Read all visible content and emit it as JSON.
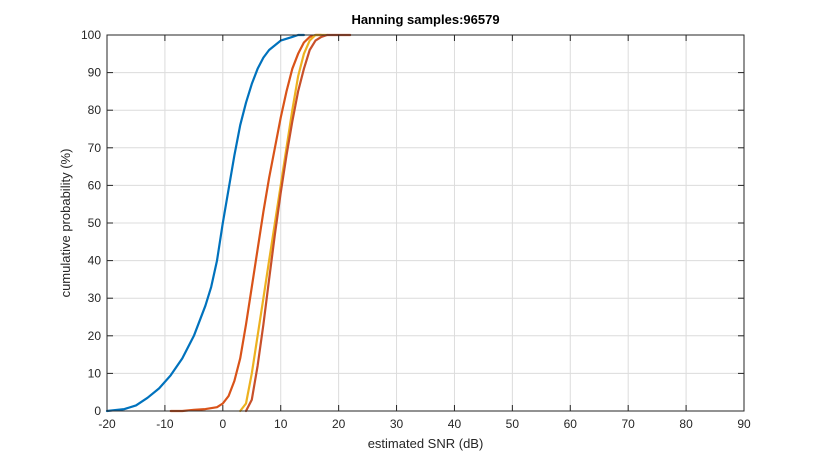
{
  "chart_data": {
    "type": "line",
    "title": "Hanning samples:96579",
    "xlabel": "estimated SNR (dB)",
    "ylabel": "cumulative probability (%)",
    "xlim": [
      -20,
      90
    ],
    "ylim": [
      0,
      100
    ],
    "xticks": [
      "-20",
      "-10",
      "0",
      "10",
      "20",
      "30",
      "40",
      "50",
      "60",
      "70",
      "80",
      "90"
    ],
    "yticks": [
      "0",
      "10",
      "20",
      "30",
      "40",
      "50",
      "60",
      "70",
      "80",
      "90",
      "100"
    ],
    "grid": true,
    "series": [
      {
        "color": "#0072BD",
        "x": [
          -20,
          -17,
          -15,
          -13,
          -11,
          -9,
          -7,
          -5,
          -3,
          -2,
          -1,
          0,
          1,
          2,
          3,
          4,
          5,
          6,
          7,
          8,
          10,
          12,
          13,
          14
        ],
        "y": [
          0,
          0.5,
          1.5,
          3.5,
          6,
          9.5,
          14,
          20,
          28,
          33,
          40,
          50,
          59,
          68,
          76,
          82,
          87,
          91,
          94,
          96,
          98.5,
          99.5,
          100,
          100
        ]
      },
      {
        "color": "#D95319",
        "x": [
          -9,
          -7,
          -5,
          -3,
          -1,
          0,
          1,
          2,
          3,
          4,
          5,
          6,
          7,
          8,
          9,
          10,
          11,
          12,
          13,
          14,
          15,
          16,
          17
        ],
        "y": [
          0,
          0,
          0.3,
          0.5,
          1,
          2,
          4,
          8,
          14,
          23,
          33,
          43,
          53,
          62,
          70,
          78,
          85,
          91,
          95,
          98,
          99.5,
          100,
          100
        ]
      },
      {
        "color": "#EDB120",
        "x": [
          3,
          4,
          5,
          6,
          7,
          8,
          9,
          10,
          11,
          12,
          13,
          14,
          15,
          16,
          17,
          18
        ],
        "y": [
          0,
          2,
          10,
          20,
          30,
          40,
          50,
          60,
          70,
          80,
          89,
          95,
          98.5,
          100,
          100,
          100
        ]
      },
      {
        "color": "#C8502A",
        "x": [
          4,
          5,
          6,
          7,
          8,
          9,
          10,
          11,
          12,
          13,
          14,
          15,
          16,
          17,
          18,
          19,
          20,
          21,
          22
        ],
        "y": [
          0,
          3,
          12,
          23,
          35,
          47,
          58,
          68,
          77,
          85,
          91,
          96,
          98.5,
          99.5,
          100,
          100,
          100,
          100,
          100
        ]
      }
    ]
  }
}
